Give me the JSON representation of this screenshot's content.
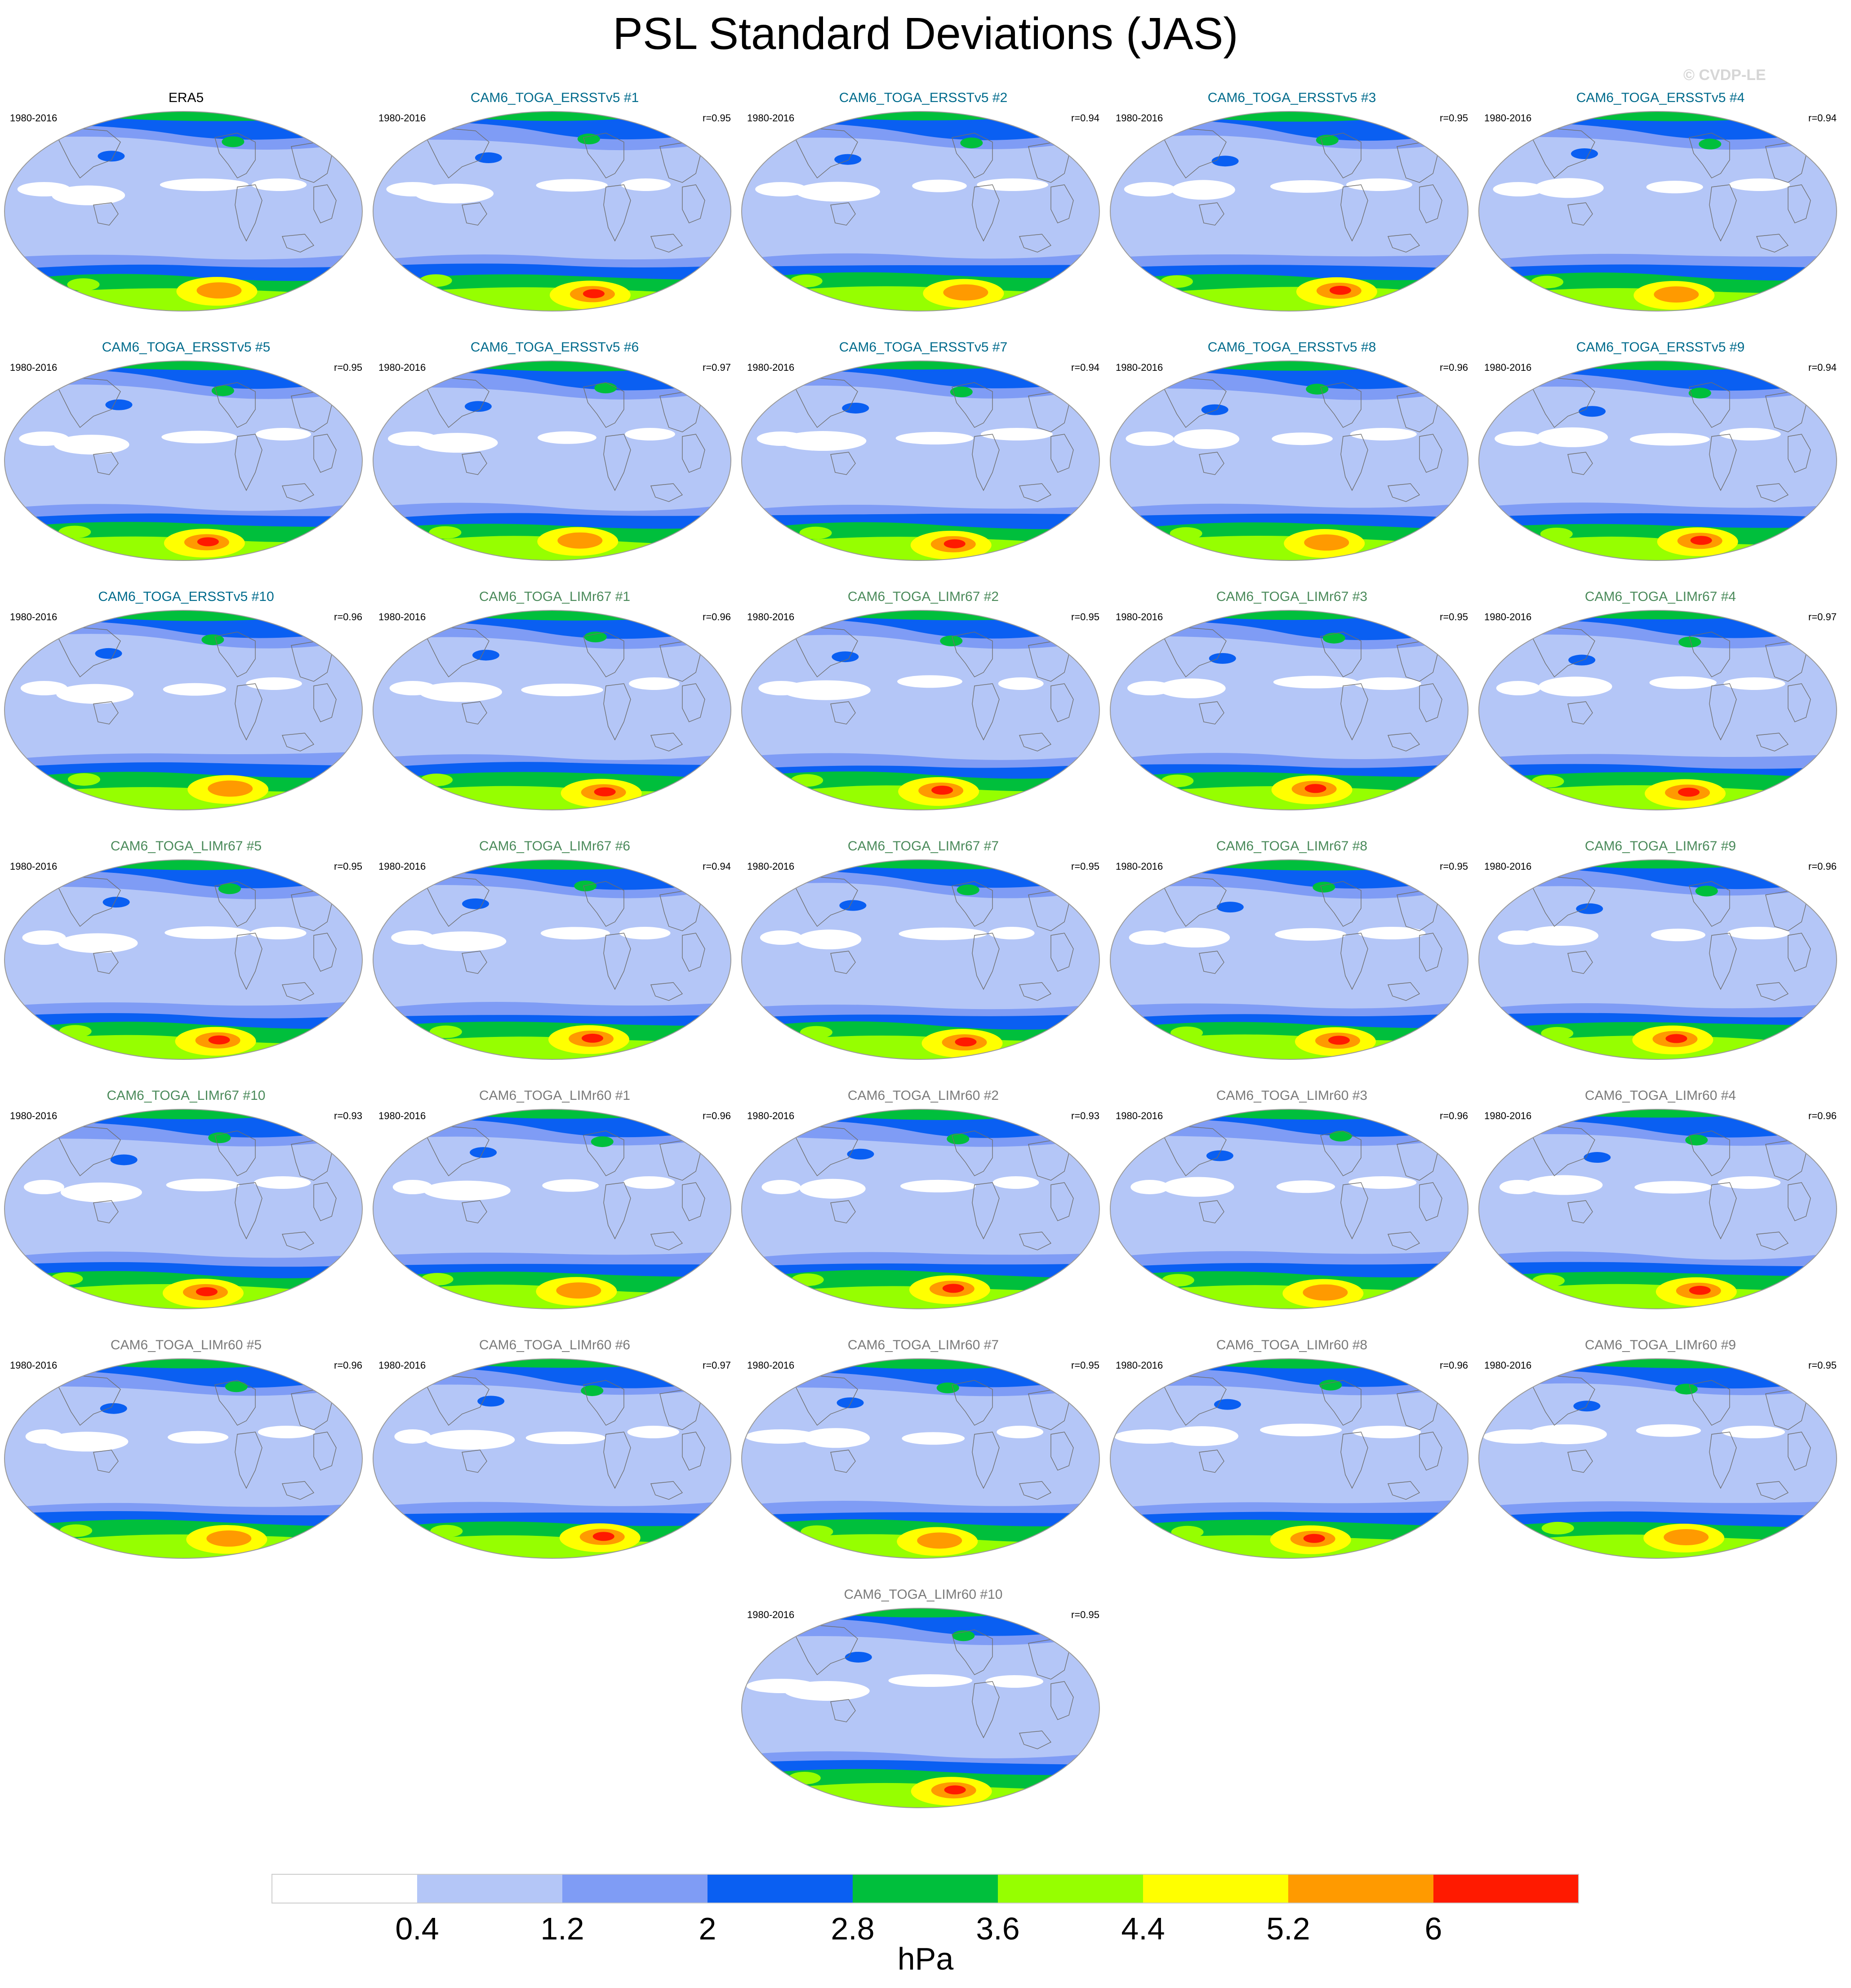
{
  "title": "PSL Standard Deviations (JAS)",
  "watermark": "© CVDP-LE",
  "colors": {
    "ersst_title": "#006b8c",
    "limr67_title": "#4a8a5a",
    "limr60_title": "#7a7a7a",
    "obs_title": "#000000"
  },
  "chart_data": {
    "type": "heatmap",
    "projection": "robinson",
    "variable": "PSL",
    "season": "JAS",
    "panels": [
      {
        "title": "ERA5",
        "years": "1980-2016",
        "r": "",
        "group": "obs"
      },
      {
        "title": "CAM6_TOGA_ERSSTv5 #1",
        "years": "1980-2016",
        "r": "r=0.95",
        "group": "ersst"
      },
      {
        "title": "CAM6_TOGA_ERSSTv5 #2",
        "years": "1980-2016",
        "r": "r=0.94",
        "group": "ersst"
      },
      {
        "title": "CAM6_TOGA_ERSSTv5 #3",
        "years": "1980-2016",
        "r": "r=0.95",
        "group": "ersst"
      },
      {
        "title": "CAM6_TOGA_ERSSTv5 #4",
        "years": "1980-2016",
        "r": "r=0.94",
        "group": "ersst"
      },
      {
        "title": "CAM6_TOGA_ERSSTv5 #5",
        "years": "1980-2016",
        "r": "r=0.95",
        "group": "ersst"
      },
      {
        "title": "CAM6_TOGA_ERSSTv5 #6",
        "years": "1980-2016",
        "r": "r=0.97",
        "group": "ersst"
      },
      {
        "title": "CAM6_TOGA_ERSSTv5 #7",
        "years": "1980-2016",
        "r": "r=0.94",
        "group": "ersst"
      },
      {
        "title": "CAM6_TOGA_ERSSTv5 #8",
        "years": "1980-2016",
        "r": "r=0.96",
        "group": "ersst"
      },
      {
        "title": "CAM6_TOGA_ERSSTv5 #9",
        "years": "1980-2016",
        "r": "r=0.94",
        "group": "ersst"
      },
      {
        "title": "CAM6_TOGA_ERSSTv5 #10",
        "years": "1980-2016",
        "r": "r=0.96",
        "group": "ersst"
      },
      {
        "title": "CAM6_TOGA_LIMr67 #1",
        "years": "1980-2016",
        "r": "r=0.96",
        "group": "limr67"
      },
      {
        "title": "CAM6_TOGA_LIMr67 #2",
        "years": "1980-2016",
        "r": "r=0.95",
        "group": "limr67"
      },
      {
        "title": "CAM6_TOGA_LIMr67 #3",
        "years": "1980-2016",
        "r": "r=0.95",
        "group": "limr67"
      },
      {
        "title": "CAM6_TOGA_LIMr67 #4",
        "years": "1980-2016",
        "r": "r=0.97",
        "group": "limr67"
      },
      {
        "title": "CAM6_TOGA_LIMr67 #5",
        "years": "1980-2016",
        "r": "r=0.95",
        "group": "limr67"
      },
      {
        "title": "CAM6_TOGA_LIMr67 #6",
        "years": "1980-2016",
        "r": "r=0.94",
        "group": "limr67"
      },
      {
        "title": "CAM6_TOGA_LIMr67 #7",
        "years": "1980-2016",
        "r": "r=0.95",
        "group": "limr67"
      },
      {
        "title": "CAM6_TOGA_LIMr67 #8",
        "years": "1980-2016",
        "r": "r=0.95",
        "group": "limr67"
      },
      {
        "title": "CAM6_TOGA_LIMr67 #9",
        "years": "1980-2016",
        "r": "r=0.96",
        "group": "limr67"
      },
      {
        "title": "CAM6_TOGA_LIMr67 #10",
        "years": "1980-2016",
        "r": "r=0.93",
        "group": "limr67"
      },
      {
        "title": "CAM6_TOGA_LIMr60 #1",
        "years": "1980-2016",
        "r": "r=0.96",
        "group": "limr60"
      },
      {
        "title": "CAM6_TOGA_LIMr60 #2",
        "years": "1980-2016",
        "r": "r=0.93",
        "group": "limr60"
      },
      {
        "title": "CAM6_TOGA_LIMr60 #3",
        "years": "1980-2016",
        "r": "r=0.96",
        "group": "limr60"
      },
      {
        "title": "CAM6_TOGA_LIMr60 #4",
        "years": "1980-2016",
        "r": "r=0.96",
        "group": "limr60"
      },
      {
        "title": "CAM6_TOGA_LIMr60 #5",
        "years": "1980-2016",
        "r": "r=0.96",
        "group": "limr60"
      },
      {
        "title": "CAM6_TOGA_LIMr60 #6",
        "years": "1980-2016",
        "r": "r=0.97",
        "group": "limr60"
      },
      {
        "title": "CAM6_TOGA_LIMr60 #7",
        "years": "1980-2016",
        "r": "r=0.95",
        "group": "limr60"
      },
      {
        "title": "CAM6_TOGA_LIMr60 #8",
        "years": "1980-2016",
        "r": "r=0.96",
        "group": "limr60"
      },
      {
        "title": "CAM6_TOGA_LIMr60 #9",
        "years": "1980-2016",
        "r": "r=0.95",
        "group": "limr60"
      },
      {
        "title": "CAM6_TOGA_LIMr60 #10",
        "years": "1980-2016",
        "r": "r=0.95",
        "group": "limr60"
      }
    ],
    "colorbar": {
      "unit": "hPa",
      "levels": [
        "0.4",
        "1.2",
        "2",
        "2.8",
        "3.6",
        "4.4",
        "5.2",
        "6"
      ],
      "colors": [
        "#ffffff",
        "#b4c6f7",
        "#7f9cf5",
        "#0a5ff2",
        "#00bf3c",
        "#96ff00",
        "#ffff00",
        "#ff9a00",
        "#ff1a00"
      ]
    }
  }
}
